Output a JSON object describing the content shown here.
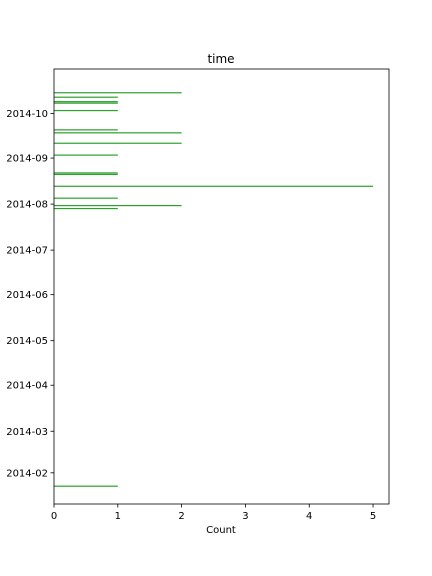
{
  "chart_data": {
    "type": "bar",
    "orientation": "horizontal",
    "title": "time",
    "xlabel": "Count",
    "ylabel": "",
    "xlim": [
      0,
      5.25
    ],
    "ylim": [
      "2014-01-11",
      "2014-10-31"
    ],
    "x_ticks": [
      "0",
      "1",
      "2",
      "3",
      "4",
      "5"
    ],
    "y_ticks": [
      "2014-02",
      "2014-03",
      "2014-04",
      "2014-05",
      "2014-06",
      "2014-07",
      "2014-08",
      "2014-09",
      "2014-10"
    ],
    "bar_color": "#2ca02c",
    "grid": false,
    "bars": [
      {
        "date": "2014-01-23",
        "count": 1
      },
      {
        "date": "2014-07-29",
        "count": 1
      },
      {
        "date": "2014-07-31",
        "count": 2
      },
      {
        "date": "2014-08-05",
        "count": 1
      },
      {
        "date": "2014-08-13",
        "count": 5
      },
      {
        "date": "2014-08-21",
        "count": 1
      },
      {
        "date": "2014-08-22",
        "count": 1
      },
      {
        "date": "2014-09-03",
        "count": 1
      },
      {
        "date": "2014-09-11",
        "count": 2
      },
      {
        "date": "2014-09-18",
        "count": 2
      },
      {
        "date": "2014-09-20",
        "count": 1
      },
      {
        "date": "2014-10-03",
        "count": 1
      },
      {
        "date": "2014-10-08",
        "count": 1
      },
      {
        "date": "2014-10-09",
        "count": 1
      },
      {
        "date": "2014-10-12",
        "count": 1
      },
      {
        "date": "2014-10-15",
        "count": 2
      }
    ]
  }
}
